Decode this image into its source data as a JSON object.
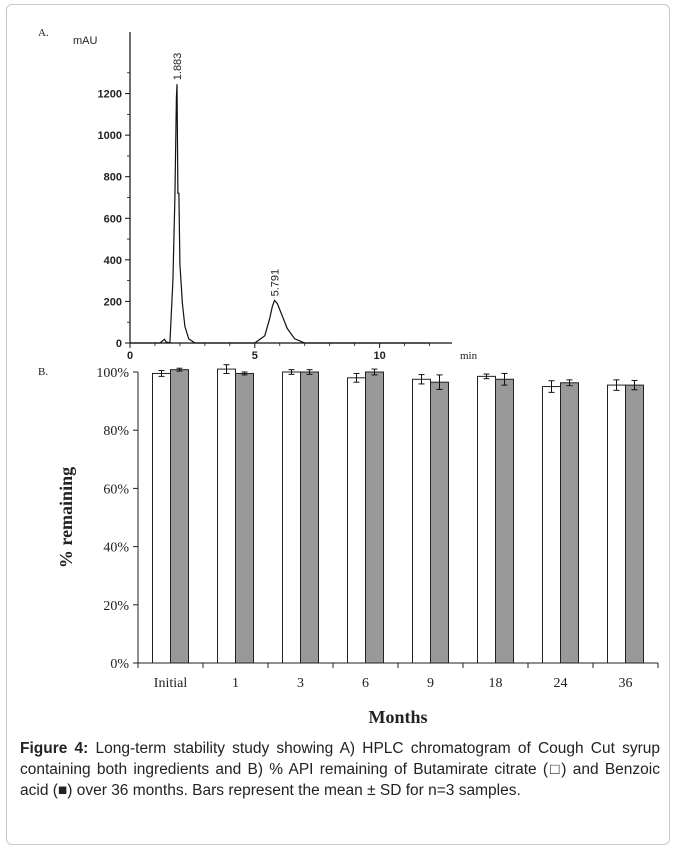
{
  "chart_data": [
    {
      "type": "line",
      "panel_label": "A.",
      "ylabel": "mAU",
      "xlabel": "min",
      "xlim": [
        0,
        12.5
      ],
      "ylim": [
        0,
        1400
      ],
      "xticks": [
        "0",
        "5",
        "10"
      ],
      "yticks": [
        "0",
        "200",
        "400",
        "600",
        "800",
        "1000",
        "1200"
      ],
      "peaks": [
        {
          "label": "1.883",
          "rt": 1.883,
          "height": 1245
        },
        {
          "label": "5.791",
          "rt": 5.791,
          "height": 205
        }
      ],
      "series": [
        {
          "x": [
            0,
            1.2,
            1.3,
            1.38,
            1.45,
            1.6,
            1.72,
            1.8,
            1.86,
            1.883,
            1.92,
            1.96,
            2.0,
            2.1,
            2.2,
            2.35,
            2.6,
            5.0,
            5.4,
            5.6,
            5.7,
            5.791,
            5.9,
            6.1,
            6.3,
            6.6,
            7.0,
            12.0
          ],
          "y": [
            0,
            0,
            10,
            18,
            5,
            0,
            300,
            700,
            1180,
            1245,
            720,
            720,
            380,
            190,
            80,
            20,
            0,
            0,
            35,
            120,
            175,
            205,
            190,
            130,
            70,
            20,
            0,
            0
          ]
        }
      ]
    },
    {
      "type": "bar",
      "panel_label": "B.",
      "ylabel": "% remaining",
      "xlabel": "Months",
      "ylim": [
        0,
        100
      ],
      "yticks": [
        "0%",
        "20%",
        "40%",
        "60%",
        "80%",
        "100%"
      ],
      "categories": [
        "Initial",
        "1",
        "3",
        "6",
        "9",
        "18",
        "24",
        "36"
      ],
      "series": [
        {
          "color": "#ffffff",
          "values": [
            99.5,
            101,
            100,
            98,
            97.5,
            98.5,
            95,
            95.5
          ],
          "sd": [
            1.0,
            1.5,
            0.8,
            1.5,
            1.6,
            0.8,
            2.0,
            1.8
          ]
        },
        {
          "color": "#999999",
          "values": [
            100.8,
            99.5,
            100,
            100,
            96.5,
            97.5,
            96.3,
            95.5
          ],
          "sd": [
            0.5,
            0.5,
            0.8,
            1.0,
            2.5,
            2.0,
            1.0,
            1.6
          ]
        }
      ]
    }
  ],
  "caption": {
    "label": "Figure 4:",
    "text": " Long-term stability study showing A) HPLC chromatogram of Cough Cut syrup containing both ingredients and B) % API remaining of Butamirate citrate (□) and Benzoic acid (■) over 36 months. Bars represent the mean ± SD for n=3 samples."
  }
}
